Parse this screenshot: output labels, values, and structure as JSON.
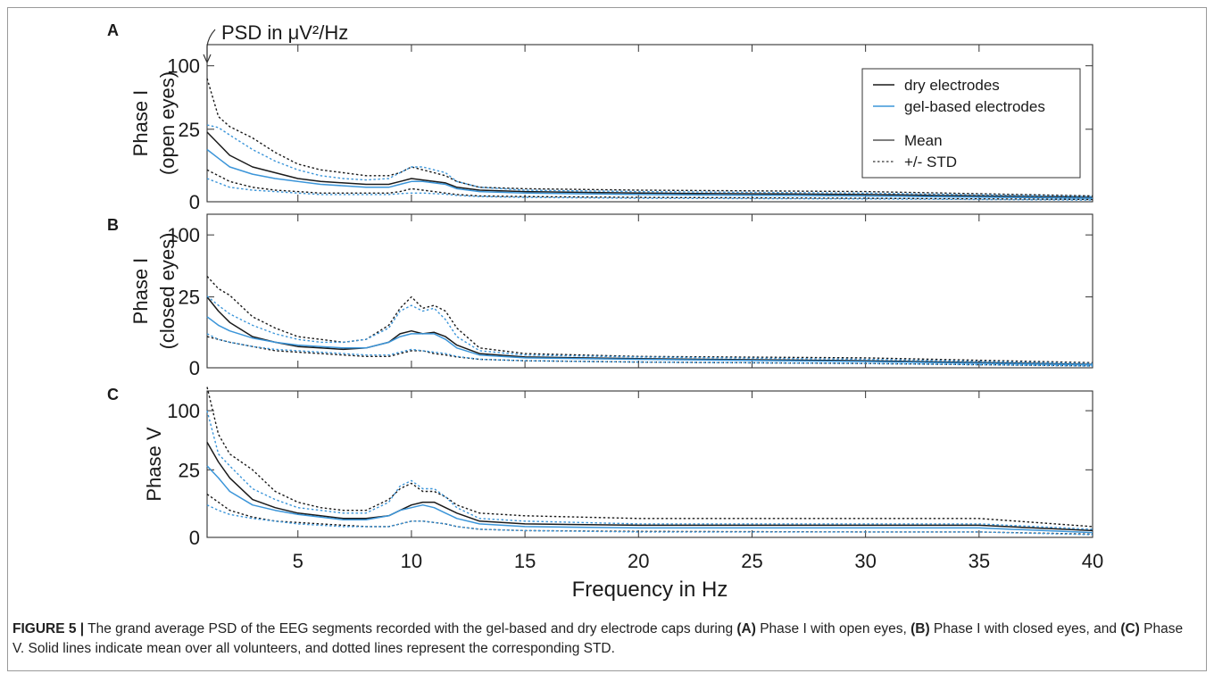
{
  "figure": {
    "top_annotation": "PSD in μV²/Hz",
    "xlabel": "Frequency in Hz",
    "caption": {
      "label": "FIGURE 5 |",
      "parts": [
        {
          "t": " The grand average PSD of the EEG segments recorded with the gel-based and dry electrode caps during ",
          "b": false
        },
        {
          "t": "(A)",
          "b": true
        },
        {
          "t": " Phase I with open eyes, ",
          "b": false
        },
        {
          "t": "(B)",
          "b": true
        },
        {
          "t": " Phase I with closed eyes, and ",
          "b": false
        },
        {
          "t": "(C)",
          "b": true
        },
        {
          "t": " Phase V. Solid lines indicate mean over all volunteers, and dotted lines represent the corresponding STD.",
          "b": false
        }
      ]
    },
    "legend": {
      "dry": "dry electrodes",
      "gel": "gel-based electrodes",
      "mean": "Mean",
      "std": "+/- STD"
    },
    "colors": {
      "dry": "#1a1a1a",
      "gel": "#3b95d9",
      "axis": "#333333"
    }
  },
  "chart_data": [
    {
      "type": "line",
      "panel": "A",
      "ylabel": [
        "Phase I",
        "(open eyes)"
      ],
      "y_ticks": [
        0,
        25,
        100
      ],
      "y_scale": "custom (0-25 stretched, 25-100 compressed)",
      "xlim": [
        1,
        40
      ],
      "x_ticks": [
        5,
        10,
        15,
        20,
        25,
        30,
        35,
        40
      ],
      "legend_position": "top-right",
      "series": [
        {
          "name": "dry electrodes",
          "stat": "mean",
          "x": [
            1,
            1.5,
            2,
            3,
            4,
            5,
            6,
            7,
            8,
            9,
            9.5,
            10,
            10.5,
            11,
            11.5,
            12,
            13,
            15,
            20,
            30,
            40
          ],
          "y": [
            24,
            20,
            16,
            12,
            10,
            8,
            7,
            6.5,
            6,
            6,
            7,
            8,
            7.5,
            7,
            6.5,
            5,
            4,
            3.5,
            3,
            2.5,
            1.5
          ]
        },
        {
          "name": "dry electrodes",
          "stat": "+STD",
          "x": [
            1,
            1.5,
            2,
            3,
            4,
            5,
            6,
            7,
            8,
            9,
            9.5,
            10,
            10.5,
            11,
            11.5,
            12,
            13,
            15,
            20,
            30,
            40
          ],
          "y": [
            85,
            40,
            28,
            22,
            17,
            13,
            11,
            10,
            9,
            9,
            10,
            12,
            11,
            10,
            9,
            7,
            5,
            4.5,
            4,
            3.5,
            2
          ]
        },
        {
          "name": "dry electrodes",
          "stat": "-STD",
          "x": [
            1,
            1.5,
            2,
            3,
            4,
            5,
            6,
            7,
            8,
            9,
            9.5,
            10,
            10.5,
            11,
            11.5,
            12,
            13,
            15,
            20,
            30,
            40
          ],
          "y": [
            11,
            9,
            7,
            5,
            4,
            3.5,
            3,
            3,
            3,
            3,
            3.5,
            4.5,
            4,
            3.5,
            3,
            2.5,
            2,
            1.8,
            1.5,
            1.2,
            0.8
          ]
        },
        {
          "name": "gel-based electrodes",
          "stat": "mean",
          "x": [
            1,
            1.5,
            2,
            3,
            4,
            5,
            6,
            7,
            8,
            9,
            9.5,
            10,
            10.5,
            11,
            11.5,
            12,
            13,
            15,
            20,
            30,
            40
          ],
          "y": [
            18,
            15,
            12,
            9.5,
            8,
            7,
            6,
            5.5,
            5,
            5,
            6,
            7,
            7,
            6.5,
            6,
            4.5,
            3.5,
            3,
            2.5,
            2,
            1.2
          ]
        },
        {
          "name": "gel-based electrodes",
          "stat": "+STD",
          "x": [
            1,
            1.5,
            2,
            3,
            4,
            5,
            6,
            7,
            8,
            9,
            9.5,
            10,
            10.5,
            11,
            11.5,
            12,
            13,
            15,
            20,
            30,
            40
          ],
          "y": [
            30,
            27,
            23,
            18,
            14,
            11,
            9,
            8,
            7.5,
            8,
            10,
            12,
            12,
            11,
            10,
            7,
            5,
            4,
            3.5,
            3,
            1.8
          ]
        },
        {
          "name": "gel-based electrodes",
          "stat": "-STD",
          "x": [
            1,
            1.5,
            2,
            3,
            4,
            5,
            6,
            7,
            8,
            9,
            9.5,
            10,
            10.5,
            11,
            11.5,
            12,
            13,
            15,
            20,
            30,
            40
          ],
          "y": [
            8,
            6.5,
            5,
            4,
            3.5,
            3,
            2.5,
            2.5,
            2.5,
            2.5,
            2.8,
            3,
            3,
            2.8,
            2.6,
            2.2,
            1.8,
            1.5,
            1.2,
            1,
            0.6
          ]
        }
      ]
    },
    {
      "type": "line",
      "panel": "B",
      "ylabel": [
        "Phase I",
        "(closed eyes)"
      ],
      "y_ticks": [
        0,
        25,
        100
      ],
      "y_scale": "custom (0-25 stretched, 25-100 compressed)",
      "xlim": [
        1,
        40
      ],
      "x_ticks": [
        5,
        10,
        15,
        20,
        25,
        30,
        35,
        40
      ],
      "series": [
        {
          "name": "dry electrodes",
          "stat": "mean",
          "x": [
            1,
            1.5,
            2,
            3,
            4,
            5,
            6,
            7,
            8,
            9,
            9.5,
            10,
            10.5,
            11,
            11.5,
            12,
            13,
            15,
            20,
            30,
            40
          ],
          "y": [
            25,
            20,
            16,
            11,
            9,
            7.5,
            7,
            6.5,
            7,
            9,
            12,
            13,
            12,
            12.5,
            11,
            8,
            5,
            3.8,
            3.2,
            2.5,
            1.2
          ]
        },
        {
          "name": "dry electrodes",
          "stat": "+STD",
          "x": [
            1,
            1.5,
            2,
            3,
            4,
            5,
            6,
            7,
            8,
            9,
            9.5,
            10,
            10.5,
            11,
            11.5,
            12,
            13,
            15,
            20,
            30,
            40
          ],
          "y": [
            50,
            35,
            27,
            18,
            14,
            11,
            10,
            9,
            10,
            15,
            21,
            25,
            21,
            22,
            20,
            14,
            7,
            5,
            4,
            3.5,
            1.8
          ]
        },
        {
          "name": "dry electrodes",
          "stat": "-STD",
          "x": [
            1,
            1.5,
            2,
            3,
            4,
            5,
            6,
            7,
            8,
            9,
            9.5,
            10,
            10.5,
            11,
            11.5,
            12,
            13,
            15,
            20,
            30,
            40
          ],
          "y": [
            11,
            10,
            9,
            7.5,
            6,
            5.5,
            5,
            4.5,
            4,
            4,
            5,
            6,
            6,
            5,
            4.5,
            3.8,
            3,
            2.5,
            2,
            1.5,
            0.7
          ]
        },
        {
          "name": "gel-based electrodes",
          "stat": "mean",
          "x": [
            1,
            1.5,
            2,
            3,
            4,
            5,
            6,
            7,
            8,
            9,
            9.5,
            10,
            10.5,
            11,
            11.5,
            12,
            13,
            15,
            20,
            30,
            40
          ],
          "y": [
            18,
            15,
            13,
            10.5,
            9,
            8,
            7.5,
            7,
            7,
            9,
            11,
            12,
            12,
            12,
            10,
            7,
            4.5,
            3.5,
            3,
            2.2,
            1
          ]
        },
        {
          "name": "gel-based electrodes",
          "stat": "+STD",
          "x": [
            1,
            1.5,
            2,
            3,
            4,
            5,
            6,
            7,
            8,
            9,
            9.5,
            10,
            10.5,
            11,
            11.5,
            12,
            13,
            15,
            20,
            30,
            40
          ],
          "y": [
            26,
            22,
            19,
            15,
            12,
            10,
            9,
            9,
            10,
            14,
            20,
            22,
            20,
            21,
            17,
            11,
            6,
            4.5,
            3.8,
            3,
            1.5
          ]
        },
        {
          "name": "gel-based electrodes",
          "stat": "-STD",
          "x": [
            1,
            1.5,
            2,
            3,
            4,
            5,
            6,
            7,
            8,
            9,
            9.5,
            10,
            10.5,
            11,
            11.5,
            12,
            13,
            15,
            20,
            30,
            40
          ],
          "y": [
            12,
            10,
            9,
            7.5,
            6.5,
            6,
            5.5,
            5,
            4.5,
            4.5,
            5.5,
            6.5,
            6,
            5.5,
            5,
            4,
            3,
            2.5,
            2,
            1.5,
            0.6
          ]
        }
      ]
    },
    {
      "type": "line",
      "panel": "C",
      "ylabel": [
        "Phase V"
      ],
      "y_ticks": [
        0,
        25,
        100
      ],
      "y_scale": "custom (0-25 stretched, 25-100 compressed)",
      "xlim": [
        1,
        40
      ],
      "x_ticks": [
        5,
        10,
        15,
        20,
        25,
        30,
        35,
        40
      ],
      "series": [
        {
          "name": "dry electrodes",
          "stat": "mean",
          "x": [
            1,
            1.5,
            2,
            3,
            4,
            5,
            6,
            7,
            8,
            9,
            9.5,
            10,
            10.5,
            11,
            11.5,
            12,
            13,
            15,
            20,
            30,
            35,
            40
          ],
          "y": [
            60,
            35,
            22,
            14,
            11,
            9,
            8,
            7,
            7,
            8,
            10,
            12,
            13,
            13,
            11,
            9,
            6,
            5,
            4.5,
            4.5,
            4.5,
            2.5
          ]
        },
        {
          "name": "dry electrodes",
          "stat": "+STD",
          "x": [
            1,
            1.5,
            2,
            3,
            4,
            5,
            6,
            7,
            8,
            9,
            9.5,
            10,
            10.5,
            11,
            11.5,
            12,
            13,
            15,
            20,
            30,
            35,
            40
          ],
          "y": [
            130,
            70,
            45,
            25,
            17,
            13,
            11,
            10,
            10,
            14,
            18,
            20,
            17,
            17,
            15,
            12,
            9,
            8,
            7,
            7,
            7,
            4
          ]
        },
        {
          "name": "dry electrodes",
          "stat": "-STD",
          "x": [
            1,
            1.5,
            2,
            3,
            4,
            5,
            6,
            7,
            8,
            9,
            9.5,
            10,
            10.5,
            11,
            11.5,
            12,
            13,
            15,
            20,
            30,
            35,
            40
          ],
          "y": [
            16,
            13,
            10,
            7.5,
            6,
            5.5,
            5,
            4.5,
            4,
            4,
            5,
            6,
            6,
            5.5,
            5,
            4,
            3,
            2.5,
            2.2,
            2,
            2,
            1.2
          ]
        },
        {
          "name": "gel-based electrodes",
          "stat": "mean",
          "x": [
            1,
            1.5,
            2,
            3,
            4,
            5,
            6,
            7,
            8,
            9,
            9.5,
            10,
            10.5,
            11,
            11.5,
            12,
            13,
            15,
            20,
            30,
            35,
            40
          ],
          "y": [
            30,
            22,
            17,
            12,
            10,
            8.5,
            7.5,
            6.5,
            6.5,
            8,
            10,
            11,
            12,
            11,
            9,
            7,
            5,
            4,
            3.5,
            3.5,
            3.5,
            1.8
          ]
        },
        {
          "name": "gel-based electrodes",
          "stat": "+STD",
          "x": [
            1,
            1.5,
            2,
            3,
            4,
            5,
            6,
            7,
            8,
            9,
            9.5,
            10,
            10.5,
            11,
            11.5,
            12,
            13,
            15,
            20,
            30,
            35,
            40
          ],
          "y": [
            100,
            45,
            30,
            18,
            14,
            11,
            10,
            9,
            9,
            13,
            19,
            21,
            18,
            18,
            15,
            11,
            7,
            6,
            5,
            5,
            5,
            3
          ]
        },
        {
          "name": "gel-based electrodes",
          "stat": "-STD",
          "x": [
            1,
            1.5,
            2,
            3,
            4,
            5,
            6,
            7,
            8,
            9,
            9.5,
            10,
            10.5,
            11,
            11.5,
            12,
            13,
            15,
            20,
            30,
            35,
            40
          ],
          "y": [
            12,
            10,
            8.5,
            7,
            6,
            5,
            4.5,
            4,
            4,
            4,
            5,
            6,
            6,
            5.5,
            5,
            4,
            3,
            2.5,
            2,
            2,
            2,
            1
          ]
        }
      ]
    }
  ]
}
